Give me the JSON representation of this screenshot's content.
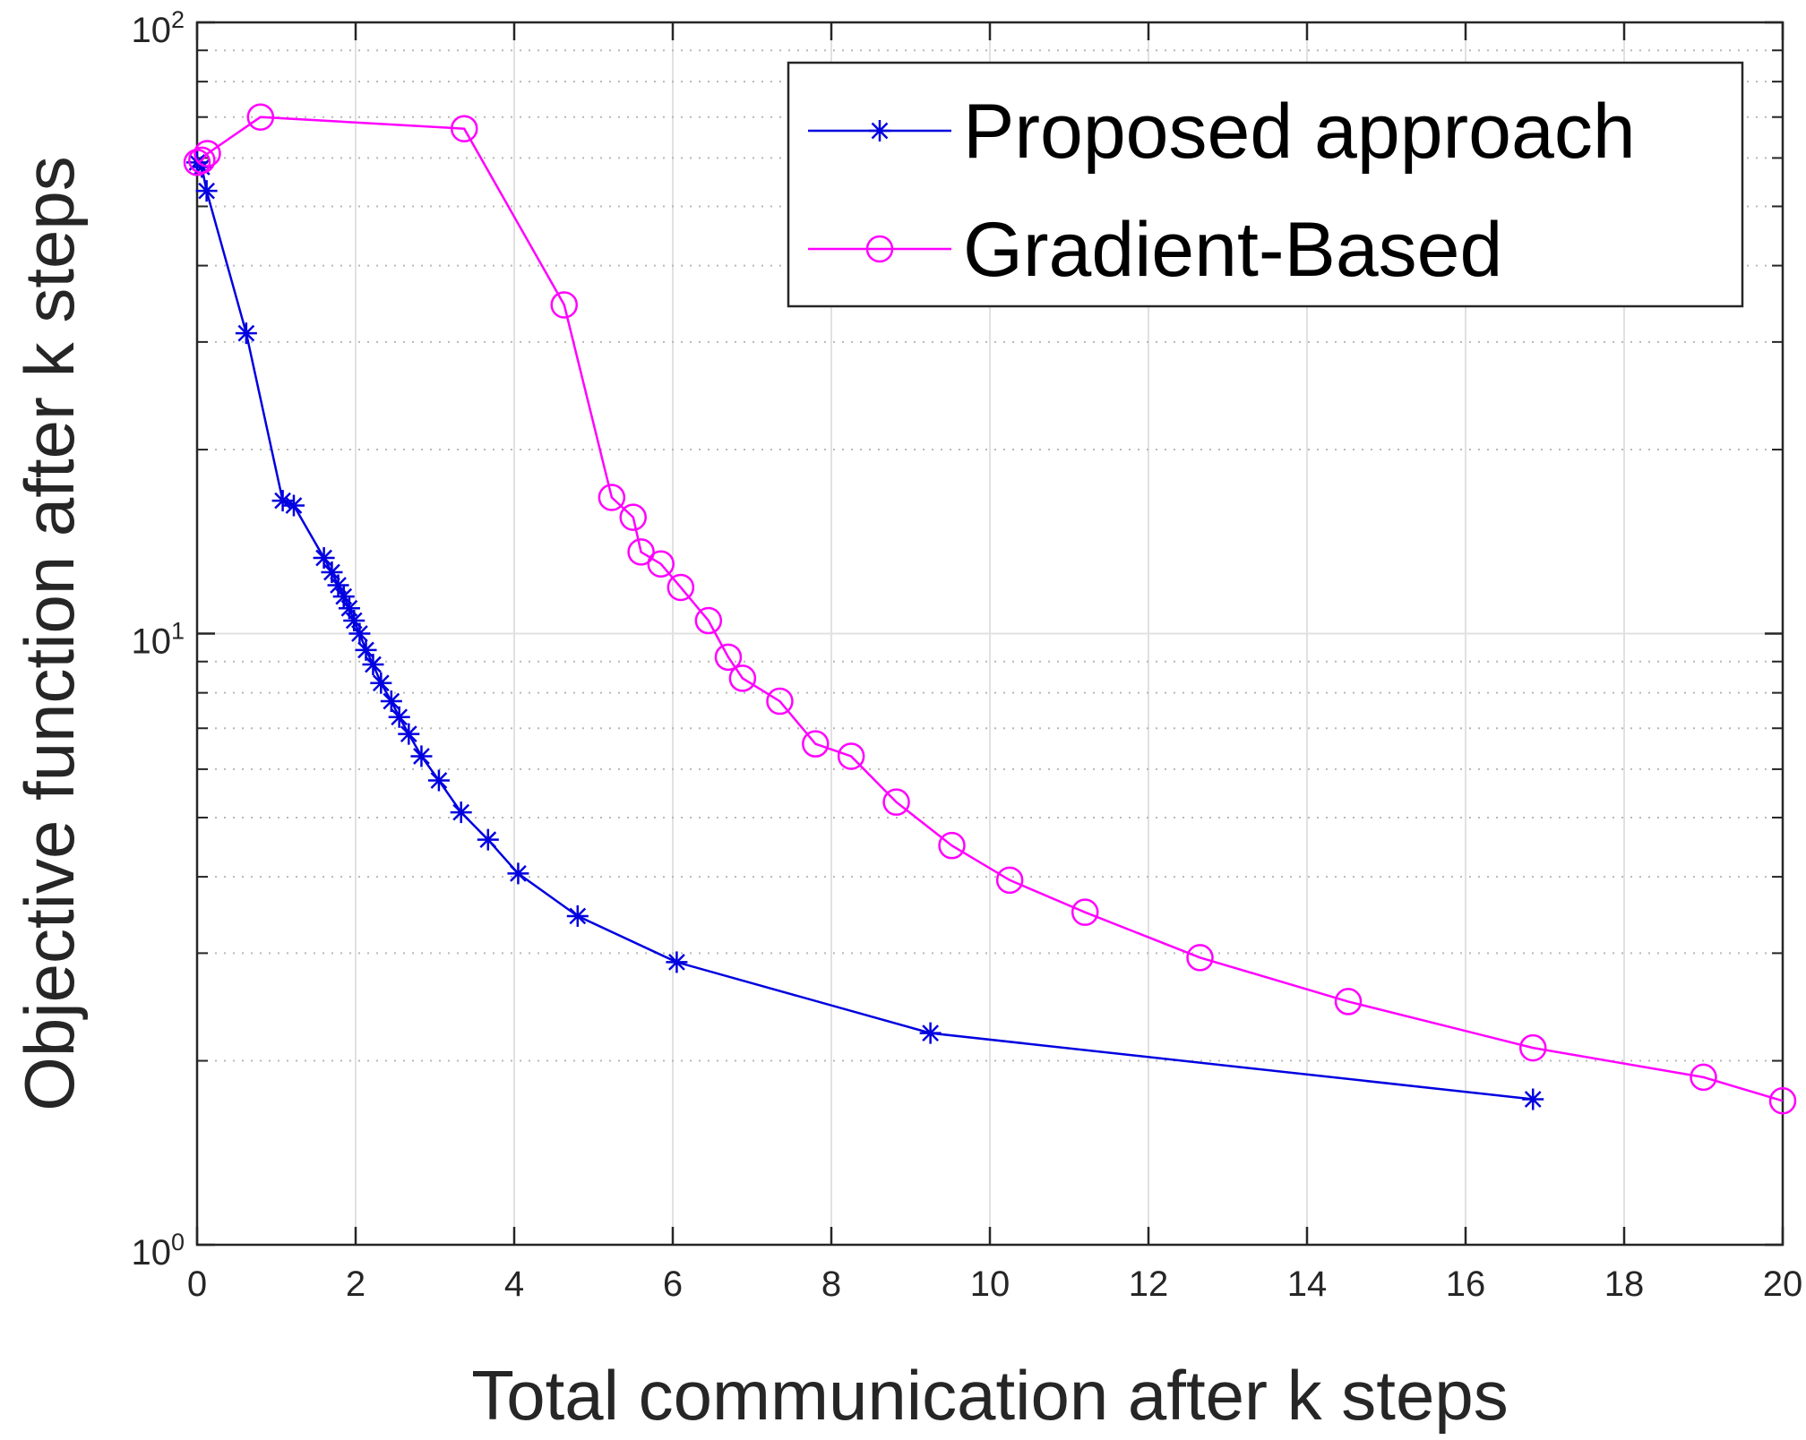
{
  "chart_data": {
    "type": "line",
    "title": "",
    "xlabel": "Total communication after k steps",
    "ylabel": "Objective function after k steps",
    "xscale": "linear",
    "yscale": "log",
    "xlim": [
      0,
      20
    ],
    "ylim": [
      1,
      100
    ],
    "xticks": [
      "0",
      "2",
      "4",
      "6",
      "8",
      "10",
      "12",
      "14",
      "16",
      "18",
      "20"
    ],
    "yticks": [
      {
        "base": "10",
        "exp": "0"
      },
      {
        "base": "10",
        "exp": "1"
      },
      {
        "base": "10",
        "exp": "2"
      }
    ],
    "grid": true,
    "minor_grid": true,
    "legend_position": "top-right",
    "series": [
      {
        "name": "Proposed approach",
        "color": "#0000e0",
        "marker": "asterisk",
        "x": [
          0.0,
          0.06,
          0.12,
          0.62,
          1.08,
          1.22,
          1.6,
          1.7,
          1.78,
          1.85,
          1.92,
          1.98,
          2.05,
          2.13,
          2.22,
          2.32,
          2.45,
          2.55,
          2.67,
          2.83,
          3.05,
          3.33,
          3.67,
          4.05,
          4.8,
          6.05,
          9.25,
          16.85
        ],
        "y": [
          59.0,
          58.0,
          53.0,
          31.0,
          16.5,
          16.2,
          13.3,
          12.6,
          12.0,
          11.5,
          11.0,
          10.5,
          10.0,
          9.4,
          8.9,
          8.3,
          7.75,
          7.3,
          6.85,
          6.3,
          5.75,
          5.1,
          4.6,
          4.05,
          3.45,
          2.9,
          2.22,
          1.73
        ]
      },
      {
        "name": "Gradient-Based",
        "color": "#ff00ff",
        "marker": "circle",
        "x": [
          0.0,
          0.06,
          0.13,
          0.8,
          3.37,
          4.63,
          5.23,
          5.5,
          5.6,
          5.85,
          6.1,
          6.45,
          6.7,
          6.88,
          7.35,
          7.8,
          8.25,
          8.82,
          9.52,
          10.25,
          11.2,
          12.65,
          14.52,
          16.85,
          19.0,
          20.0
        ],
        "y": [
          59.0,
          59.5,
          61.0,
          70.0,
          67.0,
          34.5,
          16.7,
          15.5,
          13.6,
          13.0,
          11.9,
          10.5,
          9.15,
          8.45,
          7.75,
          6.6,
          6.3,
          5.3,
          4.5,
          3.95,
          3.5,
          2.95,
          2.5,
          2.1,
          1.88,
          1.72
        ]
      }
    ]
  }
}
